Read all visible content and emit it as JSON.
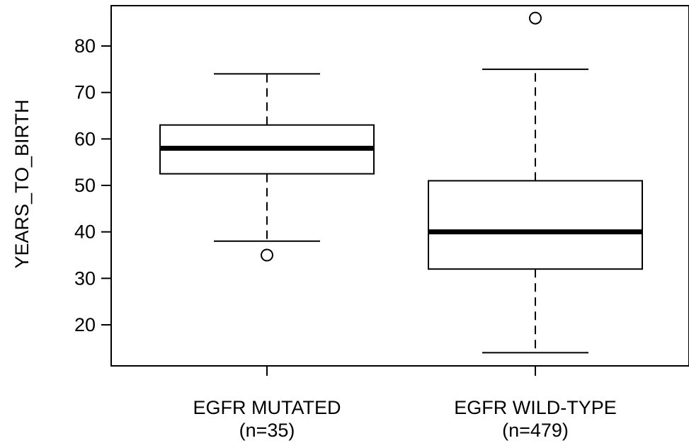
{
  "chart_data": {
    "type": "boxplot",
    "title": "",
    "xlabel": "",
    "ylabel": "YEARS_TO_BIRTH",
    "ylim": [
      10,
      88
    ],
    "yticks": [
      20,
      30,
      40,
      50,
      60,
      70,
      80
    ],
    "grid": false,
    "series": [
      {
        "category": "EGFR MUTATED",
        "count_label": "(n=35)",
        "whisker_low": 38,
        "q1": 52.5,
        "median": 58,
        "q3": 63,
        "whisker_high": 74,
        "outliers": [
          35
        ]
      },
      {
        "category": "EGFR WILD-TYPE",
        "count_label": "(n=479)",
        "whisker_low": 14,
        "q1": 32,
        "median": 40,
        "q3": 51,
        "whisker_high": 75,
        "outliers": [
          86
        ]
      }
    ]
  }
}
